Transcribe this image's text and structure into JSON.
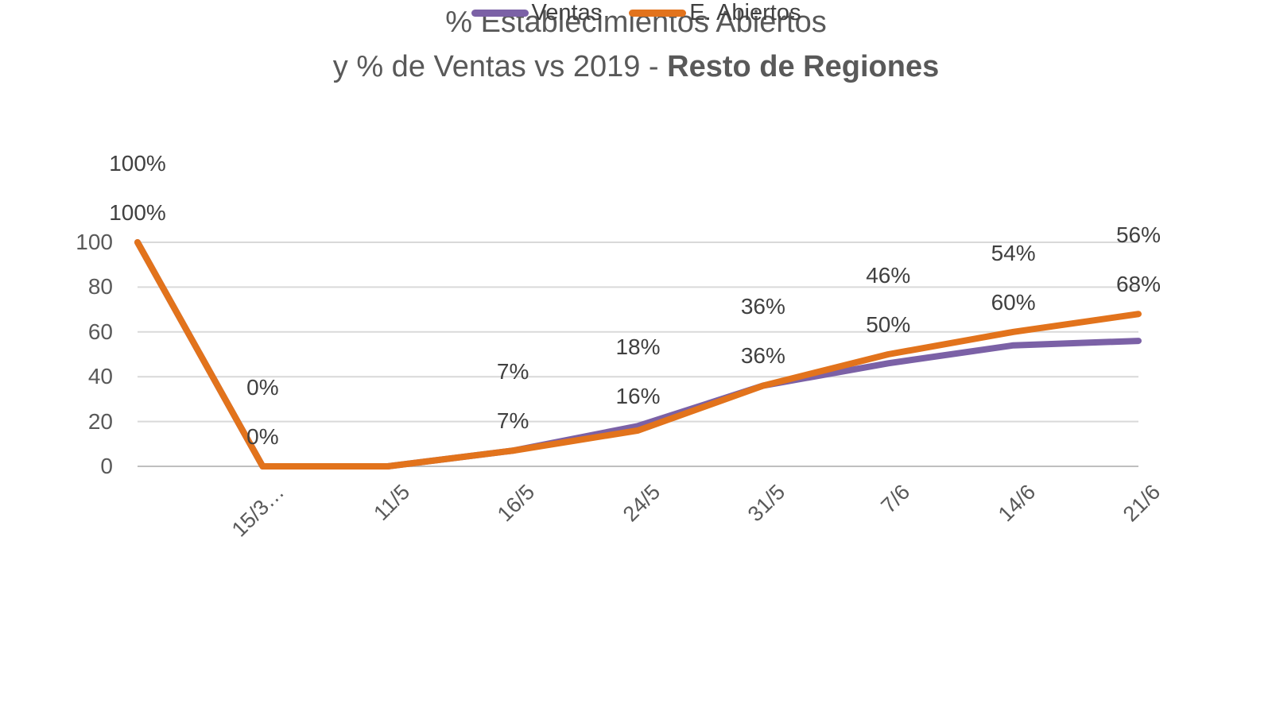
{
  "chart_data": {
    "type": "line",
    "title_line1": "% Establecimientos Abiertos",
    "title_line2_normal": "y % de Ventas vs 2019 - ",
    "title_line2_bold": "Resto de Regiones",
    "categories": [
      "",
      "15/3…",
      "11/5",
      "16/5",
      "24/5",
      "31/5",
      "7/6",
      "14/6",
      "21/6"
    ],
    "y_ticks": [
      0,
      20,
      40,
      60,
      80,
      100
    ],
    "ylim": [
      0,
      100
    ],
    "grid": true,
    "legend_position": "bottom",
    "colors": {
      "ventas": "#7B61A6",
      "e_abiertos": "#E2731C",
      "gridline": "#D9D9D9",
      "axis_line": "#BFBFBF",
      "text": "#595959",
      "data_label": "#404040"
    },
    "series": [
      {
        "name": "Ventas",
        "color": "#7B61A6",
        "values": [
          100,
          0,
          0,
          7,
          18,
          36,
          46,
          54,
          56
        ],
        "labels": [
          "100%",
          "0%",
          "",
          "7%",
          "18%",
          "36%",
          "46%",
          "54%",
          "56%"
        ]
      },
      {
        "name": "E. Abiertos",
        "color": "#E2731C",
        "values": [
          100,
          0,
          0,
          7,
          16,
          36,
          50,
          60,
          68
        ],
        "labels": [
          "100%",
          "0%",
          "",
          "7%",
          "16%",
          "36%",
          "50%",
          "60%",
          "68%"
        ]
      }
    ]
  }
}
